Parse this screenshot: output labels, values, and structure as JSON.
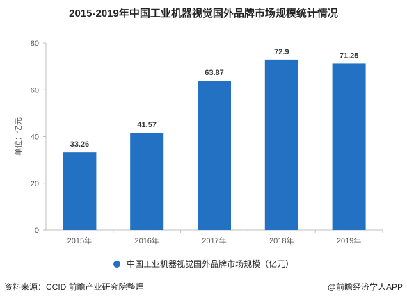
{
  "header": {
    "title": "2015-2019年中国工业机器视觉国外品牌市场规模统计情况"
  },
  "chart_data": {
    "type": "bar",
    "categories": [
      "2015年",
      "2016年",
      "2017年",
      "2018年",
      "2019年"
    ],
    "series": [
      {
        "name": "中国工业机器视觉国外品牌市场规模（亿元）",
        "values": [
          33.26,
          41.57,
          63.87,
          72.9,
          71.25
        ]
      }
    ],
    "value_labels": [
      "33.26",
      "41.57",
      "63.87",
      "72.9",
      "71.25"
    ],
    "ylabel": "单位：亿元",
    "xlabel": "",
    "ylim": [
      0,
      80
    ],
    "yticks": [
      0,
      20,
      40,
      60,
      80
    ],
    "grid": false,
    "legend_position": "bottom",
    "bar_color": "#2271c3"
  },
  "footer": {
    "source": "资料来源：CCID 前瞻产业研究院整理",
    "credit": "@前瞻经济学人APP"
  }
}
